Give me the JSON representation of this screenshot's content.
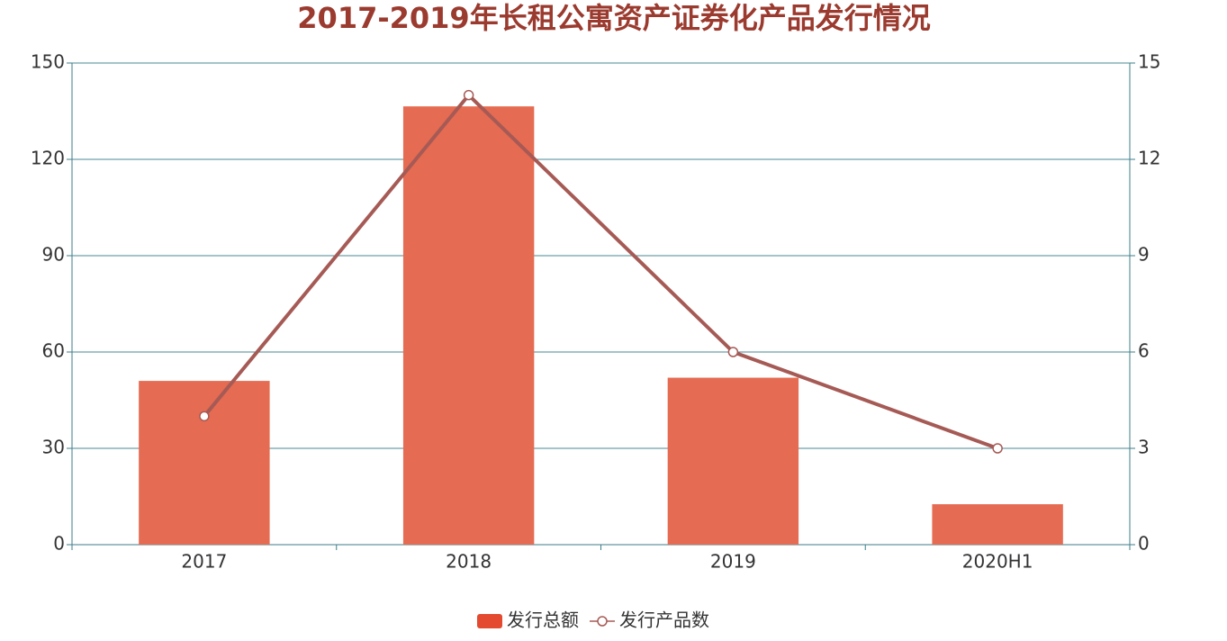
{
  "chart_data": {
    "type": "bar",
    "title": "2017-2019年长租公寓资产证券化产品发行情况",
    "categories": [
      "2017",
      "2018",
      "2019",
      "2020H1"
    ],
    "series": [
      {
        "name": "发行总额",
        "color": "#e56b52",
        "type": "bar",
        "values": [
          51,
          136.5,
          52,
          12.6
        ]
      },
      {
        "name": "发行产品数",
        "color": "#a65a55",
        "type": "line",
        "axis": "y2",
        "values": [
          4,
          14,
          6,
          3
        ]
      }
    ],
    "ylim": [
      0,
      150
    ],
    "yticks": [
      0,
      30,
      60,
      90,
      120,
      150
    ],
    "y2lim": [
      0,
      15
    ],
    "y2ticks": [
      0,
      3,
      6,
      9,
      12,
      15
    ],
    "grid": true,
    "legend": "bottom"
  }
}
